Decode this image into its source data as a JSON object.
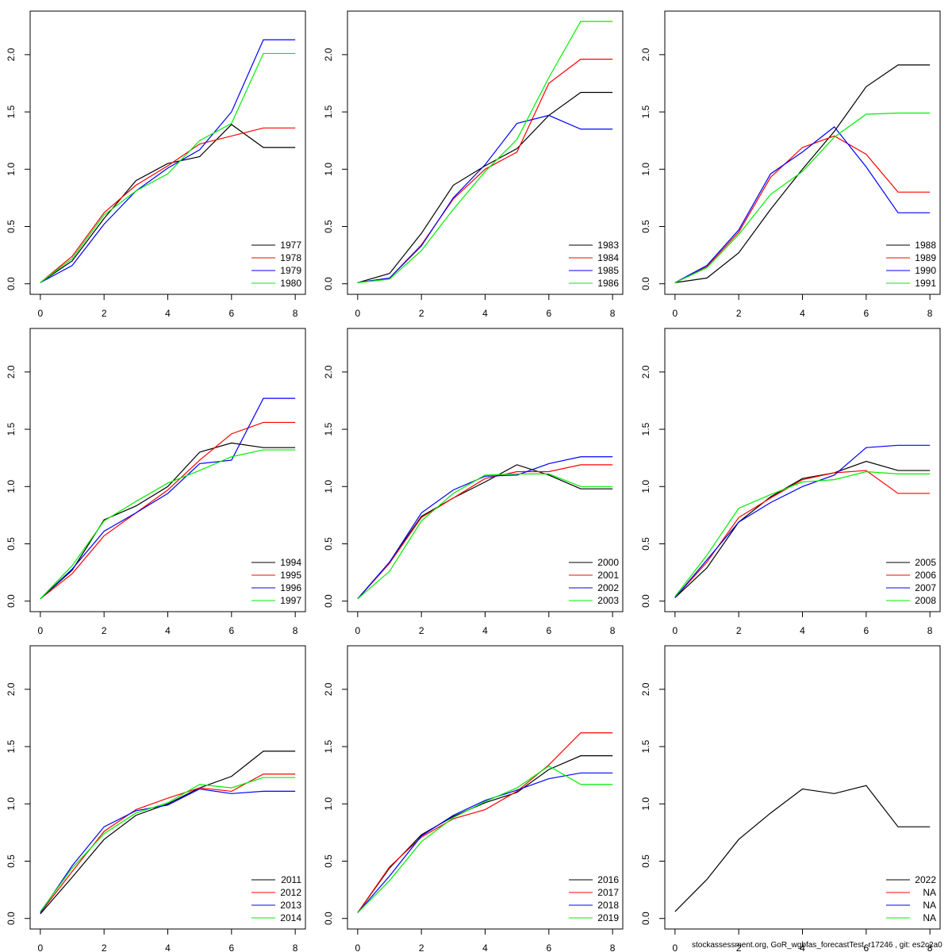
{
  "chart_data": [
    {
      "type": "line",
      "x": [
        0,
        1,
        2,
        3,
        4,
        5,
        6,
        7,
        8
      ],
      "xlim": [
        -0.32,
        8.32
      ],
      "ylim": [
        -0.092,
        2.38
      ],
      "xticks": [
        0,
        2,
        4,
        6,
        8
      ],
      "yticks": [
        {
          "value": 0,
          "label": "0.0"
        },
        0.5,
        {
          "value": 1,
          "label": "1.0"
        },
        1.5,
        {
          "value": 2,
          "label": "2.0"
        }
      ],
      "legend": "bottomright",
      "series": [
        {
          "name": "1977",
          "color": "#000000",
          "values": [
            0.01,
            0.2,
            0.57,
            0.9,
            1.05,
            1.11,
            1.39,
            1.19,
            1.19
          ]
        },
        {
          "name": "1978",
          "color": "#ff0000",
          "values": [
            0.01,
            0.24,
            0.62,
            0.86,
            1.03,
            1.22,
            1.29,
            1.36,
            1.36
          ]
        },
        {
          "name": "1979",
          "color": "#0000ff",
          "values": [
            0.01,
            0.16,
            0.52,
            0.81,
            1.01,
            1.17,
            1.5,
            2.13,
            2.13
          ]
        },
        {
          "name": "1980",
          "color": "#00ee00",
          "values": [
            0.01,
            0.22,
            0.6,
            0.81,
            0.96,
            1.25,
            1.4,
            2.01,
            2.01
          ]
        }
      ]
    },
    {
      "type": "line",
      "x": [
        0,
        1,
        2,
        3,
        4,
        5,
        6,
        7,
        8
      ],
      "xlim": [
        -0.32,
        8.32
      ],
      "ylim": [
        -0.092,
        2.38
      ],
      "xticks": [
        0,
        2,
        4,
        6,
        8
      ],
      "yticks": [
        {
          "value": 0,
          "label": "0.0"
        },
        0.5,
        {
          "value": 1,
          "label": "1.0"
        },
        1.5,
        {
          "value": 2,
          "label": "2.0"
        }
      ],
      "legend": "bottomright",
      "series": [
        {
          "name": "1983",
          "color": "#000000",
          "values": [
            0.01,
            0.09,
            0.44,
            0.86,
            1.03,
            1.18,
            1.47,
            1.67,
            1.67
          ]
        },
        {
          "name": "1984",
          "color": "#ff0000",
          "values": [
            0.01,
            0.05,
            0.34,
            0.74,
            1.0,
            1.15,
            1.75,
            1.96,
            1.96
          ]
        },
        {
          "name": "1985",
          "color": "#0000ff",
          "values": [
            0.01,
            0.05,
            0.33,
            0.75,
            1.04,
            1.4,
            1.47,
            1.35,
            1.35
          ]
        },
        {
          "name": "1986",
          "color": "#00ee00",
          "values": [
            0.01,
            0.04,
            0.29,
            0.65,
            0.98,
            1.26,
            1.8,
            2.29,
            2.29
          ]
        }
      ]
    },
    {
      "type": "line",
      "x": [
        0,
        1,
        2,
        3,
        4,
        5,
        6,
        7,
        8
      ],
      "xlim": [
        -0.32,
        8.32
      ],
      "ylim": [
        -0.092,
        2.38
      ],
      "xticks": [
        0,
        2,
        4,
        6,
        8
      ],
      "yticks": [
        {
          "value": 0,
          "label": "0.0"
        },
        0.5,
        {
          "value": 1,
          "label": "1.0"
        },
        1.5,
        {
          "value": 2,
          "label": "2.0"
        }
      ],
      "legend": "bottomright",
      "series": [
        {
          "name": "1988",
          "color": "#000000",
          "values": [
            0.01,
            0.05,
            0.27,
            0.65,
            1.0,
            1.33,
            1.72,
            1.91,
            1.91
          ]
        },
        {
          "name": "1989",
          "color": "#ff0000",
          "values": [
            0.01,
            0.15,
            0.45,
            0.93,
            1.19,
            1.29,
            1.13,
            0.8,
            0.8
          ]
        },
        {
          "name": "1990",
          "color": "#0000ff",
          "values": [
            0.01,
            0.16,
            0.47,
            0.96,
            1.15,
            1.37,
            1.02,
            0.62,
            0.62
          ]
        },
        {
          "name": "1991",
          "color": "#00ee00",
          "values": [
            0.01,
            0.14,
            0.43,
            0.78,
            0.98,
            1.28,
            1.48,
            1.49,
            1.49
          ]
        }
      ]
    },
    {
      "type": "line",
      "x": [
        0,
        1,
        2,
        3,
        4,
        5,
        6,
        7,
        8
      ],
      "xlim": [
        -0.32,
        8.32
      ],
      "ylim": [
        -0.092,
        2.38
      ],
      "xticks": [
        0,
        2,
        4,
        6,
        8
      ],
      "yticks": [
        {
          "value": 0,
          "label": "0.0"
        },
        0.5,
        {
          "value": 1,
          "label": "1.0"
        },
        1.5,
        {
          "value": 2,
          "label": "2.0"
        }
      ],
      "legend": "bottomright",
      "series": [
        {
          "name": "1994",
          "color": "#000000",
          "values": [
            0.02,
            0.27,
            0.71,
            0.83,
            1.0,
            1.3,
            1.38,
            1.34,
            1.34
          ]
        },
        {
          "name": "1995",
          "color": "#ff0000",
          "values": [
            0.02,
            0.24,
            0.57,
            0.77,
            0.97,
            1.23,
            1.46,
            1.56,
            1.56
          ]
        },
        {
          "name": "1996",
          "color": "#0000ff",
          "values": [
            0.02,
            0.28,
            0.61,
            0.77,
            0.94,
            1.2,
            1.23,
            1.77,
            1.77
          ]
        },
        {
          "name": "1997",
          "color": "#00ee00",
          "values": [
            0.02,
            0.31,
            0.7,
            0.87,
            1.03,
            1.14,
            1.26,
            1.32,
            1.32
          ]
        }
      ]
    },
    {
      "type": "line",
      "x": [
        0,
        1,
        2,
        3,
        4,
        5,
        6,
        7,
        8
      ],
      "xlim": [
        -0.32,
        8.32
      ],
      "ylim": [
        -0.092,
        2.38
      ],
      "xticks": [
        0,
        2,
        4,
        6,
        8
      ],
      "yticks": [
        {
          "value": 0,
          "label": "0.0"
        },
        0.5,
        {
          "value": 1,
          "label": "1.0"
        },
        1.5,
        {
          "value": 2,
          "label": "2.0"
        }
      ],
      "legend": "bottomright",
      "series": [
        {
          "name": "2000",
          "color": "#000000",
          "values": [
            0.02,
            0.34,
            0.74,
            0.9,
            1.04,
            1.19,
            1.1,
            0.98,
            0.98
          ]
        },
        {
          "name": "2001",
          "color": "#ff0000",
          "values": [
            0.02,
            0.33,
            0.73,
            0.9,
            1.07,
            1.13,
            1.13,
            1.19,
            1.19
          ]
        },
        {
          "name": "2002",
          "color": "#0000ff",
          "values": [
            0.02,
            0.34,
            0.77,
            0.97,
            1.09,
            1.1,
            1.2,
            1.26,
            1.26
          ]
        },
        {
          "name": "2003",
          "color": "#00ee00",
          "values": [
            0.02,
            0.26,
            0.7,
            0.94,
            1.1,
            1.11,
            1.11,
            1.0,
            1.0
          ]
        }
      ]
    },
    {
      "type": "line",
      "x": [
        0,
        1,
        2,
        3,
        4,
        5,
        6,
        7,
        8
      ],
      "xlim": [
        -0.32,
        8.32
      ],
      "ylim": [
        -0.092,
        2.38
      ],
      "xticks": [
        0,
        2,
        4,
        6,
        8
      ],
      "yticks": [
        {
          "value": 0,
          "label": "0.0"
        },
        0.5,
        {
          "value": 1,
          "label": "1.0"
        },
        1.5,
        {
          "value": 2,
          "label": "2.0"
        }
      ],
      "legend": "bottomright",
      "series": [
        {
          "name": "2005",
          "color": "#000000",
          "values": [
            0.03,
            0.29,
            0.69,
            0.91,
            1.07,
            1.12,
            1.22,
            1.14,
            1.14
          ]
        },
        {
          "name": "2006",
          "color": "#ff0000",
          "values": [
            0.03,
            0.34,
            0.73,
            0.9,
            1.06,
            1.12,
            1.14,
            0.94,
            0.94
          ]
        },
        {
          "name": "2007",
          "color": "#0000ff",
          "values": [
            0.03,
            0.36,
            0.69,
            0.86,
            1.0,
            1.1,
            1.34,
            1.36,
            1.36
          ]
        },
        {
          "name": "2008",
          "color": "#00ee00",
          "values": [
            0.04,
            0.4,
            0.81,
            0.93,
            1.04,
            1.06,
            1.13,
            1.11,
            1.11
          ]
        }
      ]
    },
    {
      "type": "line",
      "x": [
        0,
        1,
        2,
        3,
        4,
        5,
        6,
        7,
        8
      ],
      "xlim": [
        -0.32,
        8.32
      ],
      "ylim": [
        -0.092,
        2.38
      ],
      "xticks": [
        0,
        2,
        4,
        6,
        8
      ],
      "yticks": [
        {
          "value": 0,
          "label": "0.0"
        },
        0.5,
        {
          "value": 1,
          "label": "1.0"
        },
        1.5,
        {
          "value": 2,
          "label": "2.0"
        }
      ],
      "legend": "bottomright",
      "series": [
        {
          "name": "2011",
          "color": "#000000",
          "values": [
            0.04,
            0.36,
            0.69,
            0.9,
            1.0,
            1.14,
            1.24,
            1.46,
            1.46
          ]
        },
        {
          "name": "2012",
          "color": "#ff0000",
          "values": [
            0.05,
            0.41,
            0.76,
            0.95,
            1.05,
            1.14,
            1.11,
            1.26,
            1.26
          ]
        },
        {
          "name": "2013",
          "color": "#0000ff",
          "values": [
            0.05,
            0.46,
            0.8,
            0.94,
            0.99,
            1.13,
            1.09,
            1.11,
            1.11
          ]
        },
        {
          "name": "2014",
          "color": "#00ee00",
          "values": [
            0.06,
            0.44,
            0.74,
            0.92,
            1.01,
            1.17,
            1.14,
            1.23,
            1.23
          ]
        }
      ]
    },
    {
      "type": "line",
      "x": [
        0,
        1,
        2,
        3,
        4,
        5,
        6,
        7,
        8
      ],
      "xlim": [
        -0.32,
        8.32
      ],
      "ylim": [
        -0.092,
        2.38
      ],
      "xticks": [
        0,
        2,
        4,
        6,
        8
      ],
      "yticks": [
        {
          "value": 0,
          "label": "0.0"
        },
        0.5,
        {
          "value": 1,
          "label": "1.0"
        },
        1.5,
        {
          "value": 2,
          "label": "2.0"
        }
      ],
      "legend": "bottomright",
      "series": [
        {
          "name": "2016",
          "color": "#000000",
          "values": [
            0.05,
            0.44,
            0.73,
            0.89,
            1.01,
            1.1,
            1.3,
            1.42,
            1.42
          ]
        },
        {
          "name": "2017",
          "color": "#ff0000",
          "values": [
            0.05,
            0.45,
            0.71,
            0.87,
            0.95,
            1.11,
            1.34,
            1.62,
            1.62
          ]
        },
        {
          "name": "2018",
          "color": "#0000ff",
          "values": [
            0.05,
            0.37,
            0.72,
            0.9,
            1.03,
            1.12,
            1.22,
            1.27,
            1.27
          ]
        },
        {
          "name": "2019",
          "color": "#00ee00",
          "values": [
            0.05,
            0.33,
            0.67,
            0.88,
            1.02,
            1.14,
            1.33,
            1.17,
            1.17
          ]
        }
      ]
    },
    {
      "type": "line",
      "x": [
        0,
        1,
        2,
        3,
        4,
        5,
        6,
        7,
        8
      ],
      "xlim": [
        -0.32,
        8.32
      ],
      "ylim": [
        -0.092,
        2.38
      ],
      "xticks": [
        0,
        2,
        4,
        6,
        8
      ],
      "yticks": [
        {
          "value": 0,
          "label": "0.0"
        },
        0.5,
        {
          "value": 1,
          "label": "1.0"
        },
        1.5,
        {
          "value": 2,
          "label": "2.0"
        }
      ],
      "legend": "bottomright",
      "series": [
        {
          "name": "2022",
          "color": "#000000",
          "values": [
            0.06,
            0.34,
            0.69,
            0.92,
            1.13,
            1.09,
            1.16,
            0.8,
            0.8
          ]
        },
        {
          "name": "NA",
          "color": "#ff0000",
          "values": [
            null,
            null,
            null,
            null,
            null,
            null,
            null,
            null,
            null
          ]
        },
        {
          "name": "NA",
          "color": "#0000ff",
          "values": [
            null,
            null,
            null,
            null,
            null,
            null,
            null,
            null,
            null
          ]
        },
        {
          "name": "NA",
          "color": "#00ee00",
          "values": [
            null,
            null,
            null,
            null,
            null,
            null,
            null,
            null,
            null
          ]
        }
      ]
    }
  ],
  "footer": "stockassessment.org, GoR_wgbfas_forecastTest, r17246 , git: es2c2a0"
}
